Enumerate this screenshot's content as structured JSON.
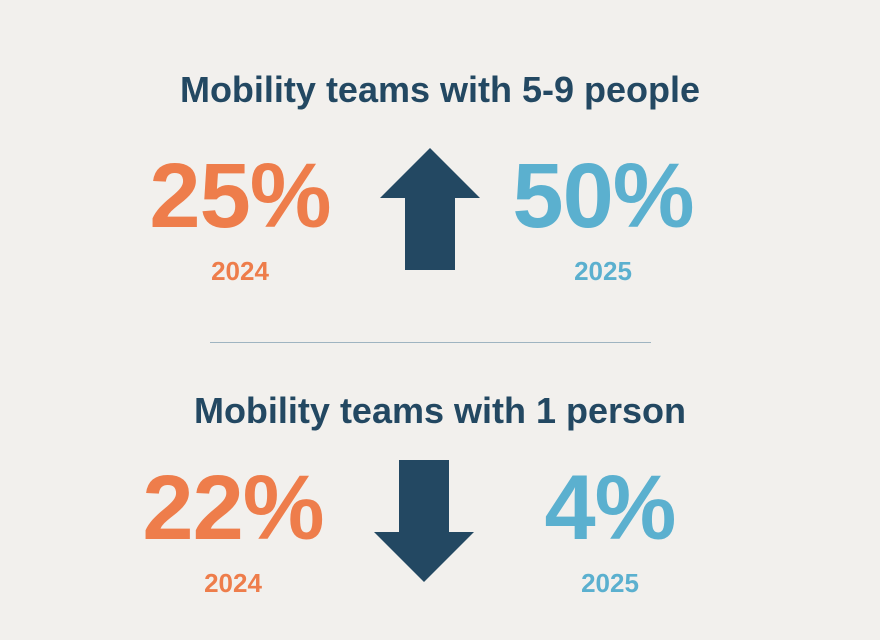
{
  "colors": {
    "background": "#f2f0ed",
    "heading": "#234862",
    "orange": "#ee7d4b",
    "blue": "#5bb0cf",
    "arrow": "#234862",
    "divider": "#9fb4c1"
  },
  "sections": [
    {
      "title": "Mobility teams with 5-9 people",
      "before": {
        "value": "25%",
        "year": "2024"
      },
      "after": {
        "value": "50%",
        "year": "2025"
      },
      "direction": "up",
      "arrow_icon": "arrow-up-icon"
    },
    {
      "title": "Mobility teams with 1 person",
      "before": {
        "value": "22%",
        "year": "2024"
      },
      "after": {
        "value": "4%",
        "year": "2025"
      },
      "direction": "down",
      "arrow_icon": "arrow-down-icon"
    }
  ]
}
